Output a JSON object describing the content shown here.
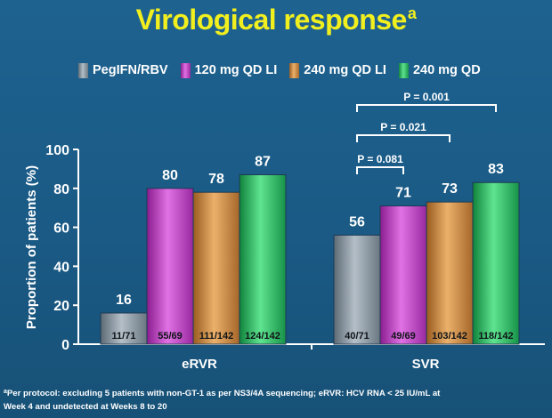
{
  "title": {
    "text": "Virological response",
    "superscript": "a"
  },
  "footnote": {
    "superscript": "a",
    "line1": "Per protocol: excluding 5 patients with non-GT-1 as per NS3/4A sequencing; eRVR: HCV RNA < 25 IU/mL at",
    "line2": "Week 4 and undetected at Weeks 8 to 20"
  },
  "colors": {
    "background": "#1b5a80",
    "title": "#f2ef1e",
    "text": "#ffffff",
    "series": [
      "#8d9ba6",
      "#c83fcb",
      "#d38e44",
      "#27bf5f"
    ]
  },
  "chart_data": {
    "type": "bar",
    "categories": [
      "eRVR",
      "SVR"
    ],
    "ylabel": "Proportion of patients (%)",
    "ylim": [
      0,
      100
    ],
    "yticks": [
      "0",
      "20",
      "40",
      "60",
      "80",
      "100"
    ],
    "legend_position": "top",
    "series": [
      {
        "name": "PegIFN/RBV",
        "values": [
          16,
          56
        ],
        "value_labels": [
          "16",
          "56"
        ],
        "counts": [
          "11/71",
          "40/71"
        ]
      },
      {
        "name": "120 mg QD LI",
        "values": [
          80,
          71
        ],
        "value_labels": [
          "80",
          "71"
        ],
        "counts": [
          "55/69",
          "49/69"
        ]
      },
      {
        "name": "240 mg QD LI",
        "values": [
          78,
          73
        ],
        "value_labels": [
          "78",
          "73"
        ],
        "counts": [
          "111/142",
          "103/142"
        ]
      },
      {
        "name": "240 mg QD",
        "values": [
          87,
          83
        ],
        "value_labels": [
          "87",
          "83"
        ],
        "counts": [
          "124/142",
          "118/142"
        ]
      }
    ],
    "comparisons": [
      {
        "category": "SVR",
        "from_series": 0,
        "to_series": 1,
        "label": "P = 0.081"
      },
      {
        "category": "SVR",
        "from_series": 0,
        "to_series": 2,
        "label": "P = 0.021"
      },
      {
        "category": "SVR",
        "from_series": 0,
        "to_series": 3,
        "label": "P = 0.001"
      }
    ]
  }
}
